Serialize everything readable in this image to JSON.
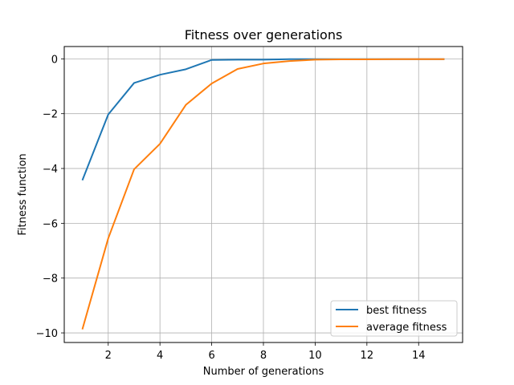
{
  "chart_data": {
    "type": "line",
    "title": "Fitness over generations",
    "xlabel": "Number of generations",
    "ylabel": "Fitness function",
    "xlim": [
      0.3,
      15.7
    ],
    "ylim": [
      -10.35,
      0.45
    ],
    "xticks": [
      2,
      4,
      6,
      8,
      10,
      12,
      14
    ],
    "xtick_labels": [
      "2",
      "4",
      "6",
      "8",
      "10",
      "12",
      "14"
    ],
    "yticks": [
      0,
      -2,
      -4,
      -6,
      -8,
      -10
    ],
    "ytick_labels": [
      "0",
      "−2",
      "−4",
      "−6",
      "−8",
      "−10"
    ],
    "grid": true,
    "legend_position": "lower-right",
    "x": [
      1,
      2,
      3,
      4,
      5,
      6,
      7,
      8,
      9,
      10,
      11,
      12,
      13,
      14,
      15
    ],
    "series": [
      {
        "name": "best fitness",
        "color": "#1f77b4",
        "values": [
          -4.43,
          -2.03,
          -0.88,
          -0.58,
          -0.38,
          -0.04,
          -0.03,
          -0.03,
          -0.01,
          -0.01,
          -0.01,
          -0.01,
          -0.01,
          -0.01,
          -0.01
        ]
      },
      {
        "name": "average fitness",
        "color": "#ff7f0e",
        "values": [
          -9.87,
          -6.55,
          -4.03,
          -3.1,
          -1.68,
          -0.9,
          -0.37,
          -0.17,
          -0.08,
          -0.03,
          -0.02,
          -0.02,
          -0.01,
          -0.01,
          -0.01
        ]
      }
    ]
  }
}
